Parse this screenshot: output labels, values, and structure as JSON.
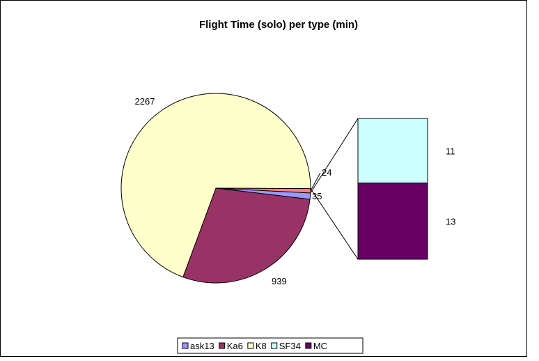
{
  "chart_data": {
    "type": "pie",
    "variant": "bar-of-pie",
    "title": "Flight Time (solo) per type (min)",
    "slices": [
      {
        "name": "ask13",
        "value": 35,
        "label": "35",
        "color": "#9999FF"
      },
      {
        "name": "Ka6",
        "value": 939,
        "label": "939",
        "color": "#993366"
      },
      {
        "name": "K8",
        "value": 2267,
        "label": "2267",
        "color": "#FFFFCC"
      },
      {
        "name": "SF34",
        "value": 11,
        "label": "11",
        "color": "#CCFFFF",
        "in_secondary": true
      },
      {
        "name": "MC",
        "value": 13,
        "label": "13",
        "color": "#660066",
        "in_secondary": true
      }
    ],
    "other_slice": {
      "value": 24,
      "label": "24",
      "color": "#FF8080"
    },
    "legend": {
      "placement": "bottom",
      "entries": [
        "ask13",
        "Ka6",
        "K8",
        "SF34",
        "MC"
      ]
    }
  }
}
